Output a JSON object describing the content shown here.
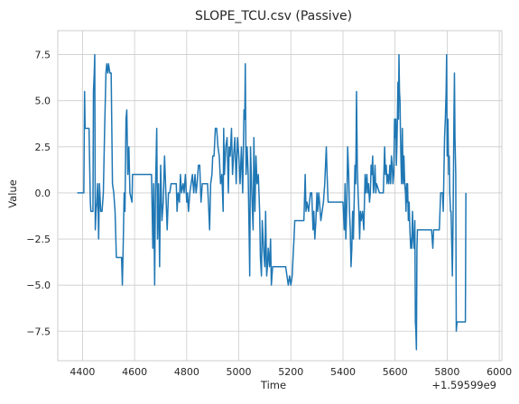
{
  "chart_data": {
    "type": "line",
    "title": "SLOPE_TCU.csv (Passive)",
    "xlabel": "Time",
    "ylabel": "Value",
    "x_offset_label": "+1.59599e9",
    "xlim": [
      4305,
      6010
    ],
    "ylim": [
      -9.1,
      8.8
    ],
    "xticks": [
      4400,
      4600,
      4800,
      5000,
      5200,
      5400,
      5600,
      5800,
      6000
    ],
    "xtick_labels": [
      "4400",
      "4600",
      "4800",
      "5000",
      "5200",
      "5400",
      "5600",
      "5800",
      "6000"
    ],
    "yticks": [
      -7.5,
      -5.0,
      -2.5,
      0.0,
      2.5,
      5.0,
      7.5
    ],
    "ytick_labels": [
      "−7.5",
      "−5.0",
      "−2.5",
      "0.0",
      "2.5",
      "5.0",
      "7.5"
    ],
    "grid": true,
    "line_color": "#1f77b4",
    "series": [
      {
        "values": [
          [
            4380,
            0
          ],
          [
            4405,
            0
          ],
          [
            4408,
            5.5
          ],
          [
            4410,
            3.5
          ],
          [
            4425,
            3.5
          ],
          [
            4430,
            -0.5
          ],
          [
            4432,
            -1
          ],
          [
            4440,
            -1
          ],
          [
            4442,
            5.5
          ],
          [
            4445,
            6.5
          ],
          [
            4447,
            7.5
          ],
          [
            4449,
            -2
          ],
          [
            4452,
            -1
          ],
          [
            4455,
            -0.5
          ],
          [
            4458,
            0.5
          ],
          [
            4462,
            -2.5
          ],
          [
            4465,
            0.5
          ],
          [
            4470,
            -1
          ],
          [
            4475,
            -1
          ],
          [
            4480,
            0
          ],
          [
            4485,
            3.5
          ],
          [
            4490,
            6.5
          ],
          [
            4493,
            7
          ],
          [
            4497,
            6.5
          ],
          [
            4500,
            7
          ],
          [
            4505,
            6.5
          ],
          [
            4510,
            6.5
          ],
          [
            4515,
            0.5
          ],
          [
            4520,
            0
          ],
          [
            4525,
            -1
          ],
          [
            4530,
            -3.5
          ],
          [
            4545,
            -3.5
          ],
          [
            4550,
            -3.5
          ],
          [
            4553,
            -5
          ],
          [
            4556,
            -3
          ],
          [
            4560,
            0
          ],
          [
            4563,
            -1
          ],
          [
            4567,
            4
          ],
          [
            4570,
            4.5
          ],
          [
            4574,
            1
          ],
          [
            4578,
            2.5
          ],
          [
            4582,
            0
          ],
          [
            4590,
            -0.5
          ],
          [
            4592,
            1
          ],
          [
            4600,
            1
          ],
          [
            4640,
            1
          ],
          [
            4665,
            1
          ],
          [
            4670,
            -3
          ],
          [
            4673,
            0.5
          ],
          [
            4677,
            -5
          ],
          [
            4680,
            0
          ],
          [
            4685,
            3.5
          ],
          [
            4688,
            -2.5
          ],
          [
            4692,
            0.5
          ],
          [
            4696,
            -4
          ],
          [
            4700,
            1.5
          ],
          [
            4705,
            -1.5
          ],
          [
            4710,
            -0.5
          ],
          [
            4715,
            2
          ],
          [
            4720,
            0
          ],
          [
            4725,
            -2
          ],
          [
            4730,
            0
          ],
          [
            4735,
            0
          ],
          [
            4740,
            0.5
          ],
          [
            4760,
            0.5
          ],
          [
            4763,
            -1
          ],
          [
            4767,
            0
          ],
          [
            4772,
            -0.5
          ],
          [
            4776,
            1
          ],
          [
            4780,
            0
          ],
          [
            4786,
            0.5
          ],
          [
            4790,
            0
          ],
          [
            4795,
            1
          ],
          [
            4800,
            -0.5
          ],
          [
            4803,
            0
          ],
          [
            4807,
            -1
          ],
          [
            4812,
            0
          ],
          [
            4817,
            0.5
          ],
          [
            4822,
            1
          ],
          [
            4827,
            0
          ],
          [
            4832,
            1
          ],
          [
            4836,
            0
          ],
          [
            4840,
            0.5
          ],
          [
            4845,
            1.5
          ],
          [
            4850,
            1.5
          ],
          [
            4855,
            -0.5
          ],
          [
            4860,
            0.5
          ],
          [
            4880,
            0.5
          ],
          [
            4885,
            -1
          ],
          [
            4888,
            -2
          ],
          [
            4892,
            0.5
          ],
          [
            4897,
            1
          ],
          [
            4900,
            2
          ],
          [
            4905,
            2
          ],
          [
            4910,
            3.5
          ],
          [
            4915,
            3.5
          ],
          [
            4920,
            2.5
          ],
          [
            4925,
            2
          ],
          [
            4930,
            0.5
          ],
          [
            4935,
            1
          ],
          [
            4940,
            -1
          ],
          [
            4942,
            3.5
          ],
          [
            4945,
            1
          ],
          [
            4950,
            2.5
          ],
          [
            4955,
            3
          ],
          [
            4960,
            0
          ],
          [
            4963,
            2.5
          ],
          [
            4967,
            2
          ],
          [
            4972,
            3.5
          ],
          [
            4976,
            1
          ],
          [
            4980,
            2
          ],
          [
            4985,
            3
          ],
          [
            4990,
            0.5
          ],
          [
            4995,
            3
          ],
          [
            5000,
            2
          ],
          [
            5005,
            0.5
          ],
          [
            5010,
            2.5
          ],
          [
            5015,
            0
          ],
          [
            5020,
            4.5
          ],
          [
            5023,
            4
          ],
          [
            5025,
            7
          ],
          [
            5028,
            1
          ],
          [
            5032,
            2.5
          ],
          [
            5036,
            1
          ],
          [
            5040,
            -2.5
          ],
          [
            5042,
            -4.5
          ],
          [
            5045,
            2.5
          ],
          [
            5050,
            0
          ],
          [
            5055,
            -2
          ],
          [
            5058,
            3
          ],
          [
            5062,
            -1
          ],
          [
            5066,
            2
          ],
          [
            5070,
            0.5
          ],
          [
            5075,
            1
          ],
          [
            5080,
            -1
          ],
          [
            5083,
            -3.5
          ],
          [
            5087,
            -4.5
          ],
          [
            5090,
            -1.5
          ],
          [
            5095,
            -3
          ],
          [
            5100,
            -4
          ],
          [
            5103,
            -1
          ],
          [
            5107,
            -4.5
          ],
          [
            5110,
            -4
          ],
          [
            5113,
            -3
          ],
          [
            5118,
            -4
          ],
          [
            5122,
            -2.5
          ],
          [
            5125,
            -5
          ],
          [
            5130,
            -4
          ],
          [
            5140,
            -4
          ],
          [
            5160,
            -4
          ],
          [
            5180,
            -4
          ],
          [
            5185,
            -4.5
          ],
          [
            5190,
            -5
          ],
          [
            5195,
            -4.5
          ],
          [
            5200,
            -5
          ],
          [
            5205,
            -4.5
          ],
          [
            5210,
            -3
          ],
          [
            5212,
            -2.5
          ],
          [
            5215,
            -1.5
          ],
          [
            5230,
            -1.5
          ],
          [
            5250,
            -1.5
          ],
          [
            5255,
            1
          ],
          [
            5258,
            -1
          ],
          [
            5262,
            -0.5
          ],
          [
            5268,
            -1
          ],
          [
            5275,
            0
          ],
          [
            5280,
            0
          ],
          [
            5285,
            -2
          ],
          [
            5288,
            -1
          ],
          [
            5292,
            -2.5
          ],
          [
            5296,
            -1.5
          ],
          [
            5300,
            0
          ],
          [
            5303,
            -1
          ],
          [
            5307,
            0
          ],
          [
            5310,
            -0.5
          ],
          [
            5315,
            -1.5
          ],
          [
            5320,
            -1
          ],
          [
            5325,
            -0.5
          ],
          [
            5330,
            0.5
          ],
          [
            5333,
            1.5
          ],
          [
            5336,
            2.5
          ],
          [
            5339,
            1
          ],
          [
            5343,
            -0.5
          ],
          [
            5347,
            -0.5
          ],
          [
            5360,
            -0.5
          ],
          [
            5380,
            -0.5
          ],
          [
            5395,
            -0.5
          ],
          [
            5400,
            -0.5
          ],
          [
            5405,
            -2
          ],
          [
            5408,
            0.5
          ],
          [
            5411,
            -2.5
          ],
          [
            5415,
            -0.5
          ],
          [
            5418,
            2.5
          ],
          [
            5422,
            1
          ],
          [
            5425,
            -1
          ],
          [
            5428,
            -2
          ],
          [
            5431,
            -4
          ],
          [
            5434,
            -3
          ],
          [
            5437,
            -1
          ],
          [
            5440,
            -2.5
          ],
          [
            5443,
            -0.5
          ],
          [
            5446,
            1.5
          ],
          [
            5449,
            0.5
          ],
          [
            5452,
            5.5
          ],
          [
            5455,
            1.5
          ],
          [
            5458,
            0
          ],
          [
            5461,
            -1
          ],
          [
            5464,
            -2.5
          ],
          [
            5467,
            -1
          ],
          [
            5470,
            -1.5
          ],
          [
            5475,
            -1
          ],
          [
            5480,
            -2
          ],
          [
            5485,
            1
          ],
          [
            5488,
            0
          ],
          [
            5492,
            1
          ],
          [
            5495,
            0
          ],
          [
            5498,
            0.5
          ],
          [
            5502,
            -0.5
          ],
          [
            5505,
            0
          ],
          [
            5508,
            1.5
          ],
          [
            5511,
            1
          ],
          [
            5514,
            2
          ],
          [
            5517,
            0
          ],
          [
            5520,
            0.5
          ],
          [
            5523,
            1.5
          ],
          [
            5526,
            0
          ],
          [
            5529,
            0.5
          ],
          [
            5540,
            0
          ],
          [
            5555,
            0
          ],
          [
            5560,
            2.5
          ],
          [
            5563,
            1
          ],
          [
            5566,
            1.5
          ],
          [
            5569,
            0.5
          ],
          [
            5572,
            1
          ],
          [
            5576,
            0.5
          ],
          [
            5580,
            1.5
          ],
          [
            5583,
            0.5
          ],
          [
            5586,
            2
          ],
          [
            5589,
            1.5
          ],
          [
            5592,
            0.5
          ],
          [
            5595,
            1
          ],
          [
            5598,
            4
          ],
          [
            5601,
            3
          ],
          [
            5603,
            4
          ],
          [
            5605,
            1.5
          ],
          [
            5607,
            2.5
          ],
          [
            5609,
            4
          ],
          [
            5611,
            6
          ],
          [
            5613,
            4
          ],
          [
            5615,
            7.5
          ],
          [
            5617,
            5.5
          ],
          [
            5619,
            5
          ],
          [
            5621,
            3
          ],
          [
            5623,
            1.5
          ],
          [
            5625,
            0.5
          ],
          [
            5628,
            3.5
          ],
          [
            5631,
            0.5
          ],
          [
            5634,
            2
          ],
          [
            5637,
            0.5
          ],
          [
            5640,
            0
          ],
          [
            5642,
            -1
          ],
          [
            5644,
            0.5
          ],
          [
            5646,
            -0.5
          ],
          [
            5648,
            0.5
          ],
          [
            5651,
            -1.5
          ],
          [
            5654,
            -0.5
          ],
          [
            5657,
            -2
          ],
          [
            5660,
            -3
          ],
          [
            5662,
            -2.5
          ],
          [
            5664,
            -3
          ],
          [
            5667,
            -1
          ],
          [
            5670,
            -2.5
          ],
          [
            5673,
            -3
          ],
          [
            5676,
            -1.5
          ],
          [
            5678,
            -7
          ],
          [
            5680,
            -7.5
          ],
          [
            5682,
            -8.5
          ],
          [
            5684,
            -3
          ],
          [
            5686,
            -2
          ],
          [
            5690,
            -2
          ],
          [
            5700,
            -2
          ],
          [
            5720,
            -2
          ],
          [
            5740,
            -2
          ],
          [
            5745,
            -3
          ],
          [
            5748,
            -2
          ],
          [
            5755,
            -2
          ],
          [
            5760,
            -2
          ],
          [
            5770,
            -2
          ],
          [
            5775,
            0
          ],
          [
            5778,
            0
          ],
          [
            5782,
            0
          ],
          [
            5785,
            -1
          ],
          [
            5790,
            3
          ],
          [
            5793,
            4
          ],
          [
            5796,
            5.5
          ],
          [
            5798,
            7.5
          ],
          [
            5800,
            2
          ],
          [
            5803,
            4
          ],
          [
            5806,
            1
          ],
          [
            5808,
            2
          ],
          [
            5810,
            0
          ],
          [
            5813,
            -1
          ],
          [
            5815,
            -1
          ],
          [
            5818,
            -3
          ],
          [
            5820,
            -4.5
          ],
          [
            5823,
            -1
          ],
          [
            5826,
            4
          ],
          [
            5828,
            6.5
          ],
          [
            5830,
            3
          ],
          [
            5833,
            1
          ],
          [
            5835,
            -7.5
          ],
          [
            5838,
            -7
          ],
          [
            5860,
            -7
          ],
          [
            5870,
            -7
          ],
          [
            5872,
            0
          ]
        ]
      }
    ]
  }
}
